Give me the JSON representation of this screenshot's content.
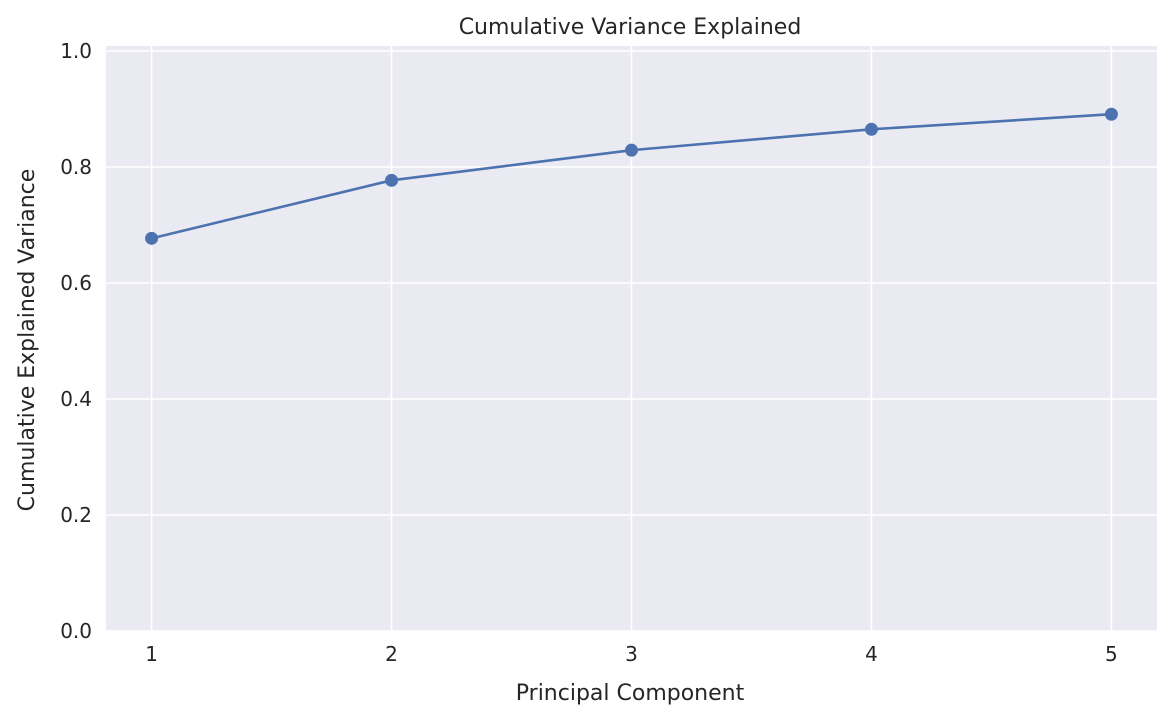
{
  "chart_data": {
    "type": "line",
    "title": "Cumulative Variance Explained",
    "xlabel": "Principal Component",
    "ylabel": "Cumulative Explained Variance",
    "x": [
      1,
      2,
      3,
      4,
      5
    ],
    "series": [
      {
        "values": [
          0.677,
          0.777,
          0.829,
          0.865,
          0.891
        ],
        "color": "#4c72b0",
        "marker": "circle"
      }
    ],
    "xticks": [
      "1",
      "2",
      "3",
      "4",
      "5"
    ],
    "yticks": [
      "0.0",
      "0.2",
      "0.4",
      "0.6",
      "0.8",
      "1.0"
    ],
    "xlim": [
      0.81,
      5.19
    ],
    "ylim": [
      0,
      1.0
    ],
    "grid": true,
    "legend": "none",
    "background": "#eaeaf2",
    "grid_color": "#ffffff"
  }
}
